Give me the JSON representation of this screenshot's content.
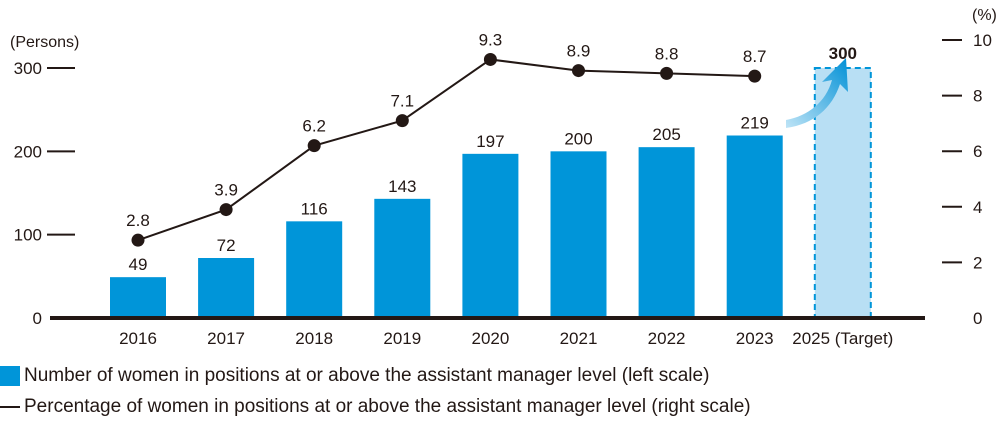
{
  "chart_data": {
    "type": "bar+line",
    "categories": [
      "2016",
      "2017",
      "2018",
      "2019",
      "2020",
      "2021",
      "2022",
      "2023",
      "2025 (Target)"
    ],
    "bars": {
      "name": "Number of women in positions at or above the assistant manager level (left scale)",
      "values": [
        49,
        72,
        116,
        143,
        197,
        200,
        205,
        219,
        300
      ],
      "target_index": 8
    },
    "line": {
      "name": "Percentage of women in positions at or above the assistant manager level (right scale)",
      "values": [
        2.8,
        3.9,
        6.2,
        7.1,
        9.3,
        8.9,
        8.8,
        8.7
      ]
    },
    "left_axis": {
      "unit_label": "(Persons)",
      "ylim": [
        0,
        300
      ],
      "ticks": [
        0,
        100,
        200,
        300
      ]
    },
    "right_axis": {
      "unit_label": "(%)",
      "ylim": [
        0,
        10
      ],
      "ticks": [
        0,
        2,
        4,
        6,
        8,
        10
      ]
    }
  },
  "legend": {
    "bars_label": "Number of women in positions at or above the assistant manager level (left scale)",
    "line_label": "Percentage of women in positions at or above the assistant manager level (right scale)"
  },
  "colors": {
    "bar": "#0095d9",
    "target_fill": "#b8dff4",
    "target_border": "#0095d9",
    "line": "#231815",
    "axis": "#231815",
    "arrow_start": "#bfe4f6",
    "arrow_end": "#0090d6"
  }
}
